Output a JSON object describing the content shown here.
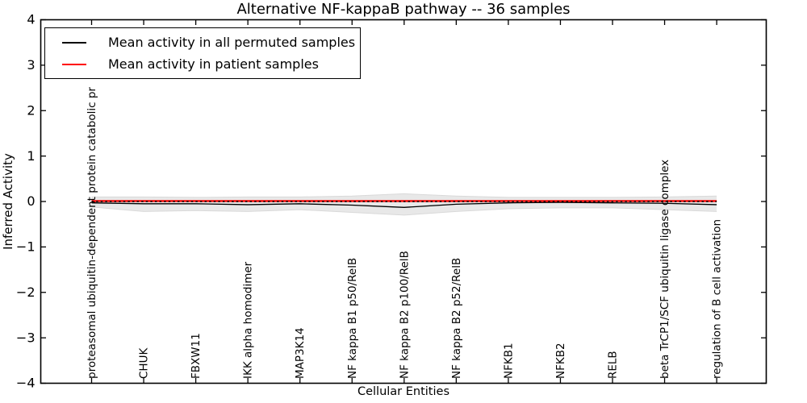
{
  "chart_data": {
    "type": "line",
    "title": "Alternative NF-kappaB pathway -- 36 samples",
    "xlabel": "Cellular Entities",
    "ylabel": "Inferred Activity",
    "ylim": [
      -4,
      4
    ],
    "ytick_labels": [
      "4",
      "3",
      "2",
      "1",
      "0",
      "−1",
      "−2",
      "−3",
      "−4"
    ],
    "grid": false,
    "legend_position": "upper left",
    "categories": [
      "proteasomal ubiquitin-dependent protein catabolic pr",
      "CHUK",
      "FBXW11",
      "IKK alpha homodimer",
      "MAP3K14",
      "NF kappa B1 p50/RelB",
      "NF kappa B2 p100/RelB",
      "NF kappa B2 p52/RelB",
      "NFKB1",
      "NFKB2",
      "RELB",
      "beta TrCP1/SCF ubiquitin ligase complex",
      "regulation of B cell activation"
    ],
    "series": [
      {
        "name": "Mean activity in all permuted samples",
        "color": "#000000",
        "style": "solid",
        "values": [
          -0.03,
          -0.05,
          -0.05,
          -0.07,
          -0.05,
          -0.08,
          -0.13,
          -0.06,
          -0.03,
          -0.02,
          -0.03,
          -0.04,
          -0.07
        ]
      },
      {
        "name": "Mean activity in patient samples",
        "color": "#ff0000",
        "style": "solid",
        "values": [
          0.01,
          0.01,
          0.01,
          0.01,
          0.01,
          0.01,
          0.01,
          0.01,
          0.01,
          0.01,
          0.01,
          0.01,
          0.01
        ]
      }
    ],
    "zero_line": {
      "value": 0,
      "color": "#000000",
      "style": "dotted"
    },
    "band": {
      "name": "permuted samples spread",
      "fill": "#e8e8e8",
      "edge": "#d9d9d9",
      "upper": [
        0.1,
        0.1,
        0.09,
        0.1,
        0.1,
        0.12,
        0.17,
        0.12,
        0.09,
        0.09,
        0.09,
        0.1,
        0.12
      ],
      "lower": [
        -0.12,
        -0.22,
        -0.2,
        -0.22,
        -0.18,
        -0.24,
        -0.3,
        -0.22,
        -0.16,
        -0.14,
        -0.14,
        -0.18,
        -0.22
      ]
    }
  }
}
